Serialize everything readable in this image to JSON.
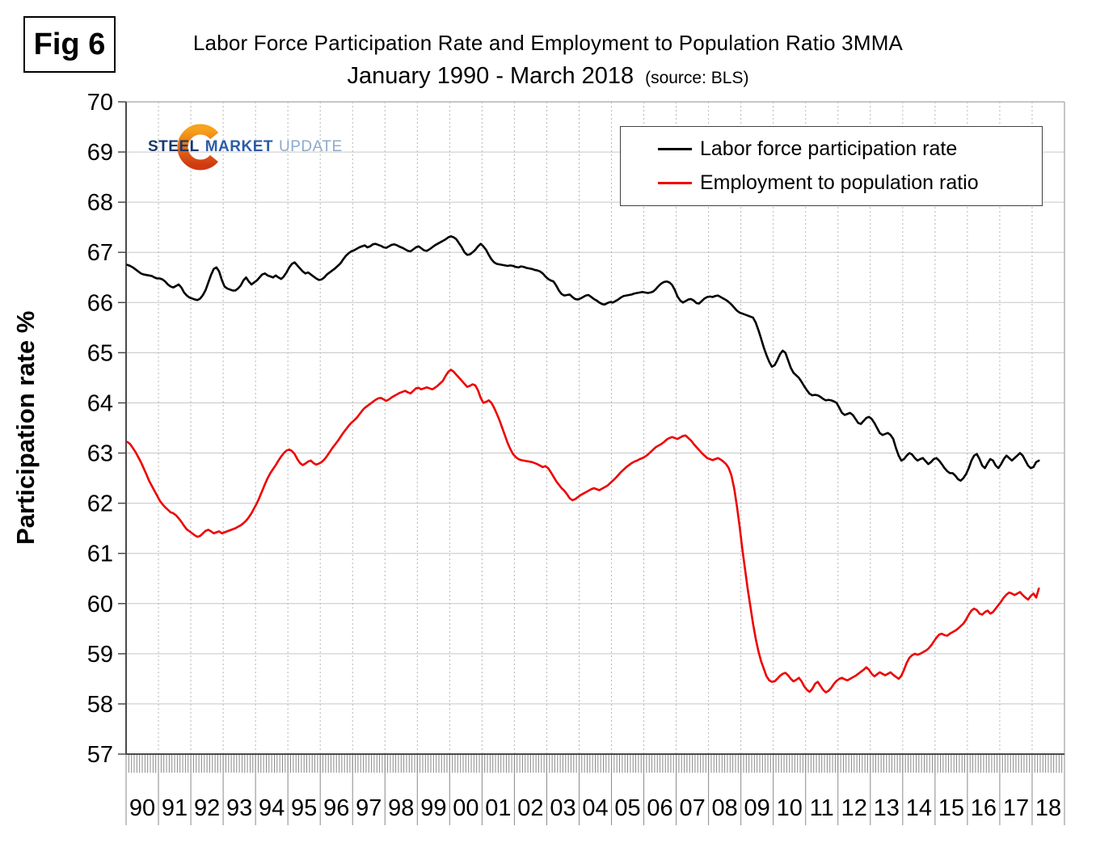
{
  "figure": {
    "label": "Fig 6"
  },
  "header": {
    "title": "Labor Force Participation Rate and Employment to Population Ratio 3MMA",
    "subtitle": "January 1990 - March 2018",
    "source": "(source: BLS)"
  },
  "logo": {
    "steel": "STEEL",
    "market": "MARKET",
    "update": "UPDATE",
    "steel_color": "#17386e",
    "market_color": "#2a5ca8",
    "update_color": "#8ea9c9",
    "crescent_color_top": "#f7a21b",
    "crescent_color_bottom": "#d03a12"
  },
  "y_axis": {
    "title": "Participation rate %"
  },
  "legend": {
    "items": [
      {
        "label": "Labor force participation rate",
        "color": "#000000"
      },
      {
        "label": "Employment to population ratio",
        "color": "#ee0000"
      }
    ]
  },
  "chart_data": {
    "type": "line",
    "title": "Labor Force Participation Rate and Employment to Population Ratio 3MMA",
    "subtitle": "January 1990 - March 2018 (source: BLS)",
    "ylabel": "Participation rate %",
    "ylim": [
      57,
      70
    ],
    "ytick_step": 1,
    "frequency": "monthly",
    "x_start_year": 1990,
    "x_axis_end_year": 2019,
    "data_end": "March 2018",
    "grid": {
      "horizontal": "solid",
      "vertical": "dotted-yearly"
    },
    "legend_position": "top-right",
    "x_tick_labels": [
      "90",
      "91",
      "92",
      "93",
      "94",
      "95",
      "96",
      "97",
      "98",
      "99",
      "00",
      "01",
      "02",
      "03",
      "04",
      "05",
      "06",
      "07",
      "08",
      "09",
      "10",
      "11",
      "12",
      "13",
      "14",
      "15",
      "16",
      "17",
      "18"
    ],
    "series": [
      {
        "name": "Labor force participation rate",
        "color": "#000000",
        "values": [
          66.75,
          66.73,
          66.7,
          66.66,
          66.62,
          66.58,
          66.56,
          66.55,
          66.54,
          66.53,
          66.5,
          66.48,
          66.48,
          66.46,
          66.42,
          66.36,
          66.32,
          66.3,
          66.33,
          66.36,
          66.3,
          66.2,
          66.14,
          66.1,
          66.08,
          66.06,
          66.05,
          66.08,
          66.15,
          66.25,
          66.4,
          66.55,
          66.67,
          66.7,
          66.62,
          66.45,
          66.32,
          66.28,
          66.26,
          66.24,
          66.24,
          66.28,
          66.34,
          66.44,
          66.5,
          66.42,
          66.36,
          66.4,
          66.44,
          66.5,
          66.56,
          66.58,
          66.54,
          66.52,
          66.5,
          66.54,
          66.5,
          66.47,
          66.52,
          66.6,
          66.7,
          66.77,
          66.8,
          66.74,
          66.68,
          66.62,
          66.58,
          66.6,
          66.56,
          66.52,
          66.48,
          66.45,
          66.46,
          66.5,
          66.56,
          66.6,
          66.64,
          66.68,
          66.73,
          66.78,
          66.86,
          66.93,
          66.98,
          67.02,
          67.04,
          67.07,
          67.1,
          67.12,
          67.14,
          67.1,
          67.12,
          67.16,
          67.17,
          67.15,
          67.13,
          67.1,
          67.09,
          67.12,
          67.15,
          67.16,
          67.14,
          67.11,
          67.09,
          67.06,
          67.03,
          67.02,
          67.06,
          67.1,
          67.12,
          67.08,
          67.04,
          67.03,
          67.06,
          67.1,
          67.14,
          67.17,
          67.2,
          67.23,
          67.26,
          67.3,
          67.32,
          67.3,
          67.26,
          67.18,
          67.1,
          67.0,
          66.95,
          66.96,
          67.0,
          67.05,
          67.12,
          67.17,
          67.12,
          67.05,
          66.95,
          66.86,
          66.8,
          66.77,
          66.76,
          66.75,
          66.74,
          66.73,
          66.74,
          66.73,
          66.71,
          66.7,
          66.72,
          66.71,
          66.69,
          66.68,
          66.67,
          66.65,
          66.64,
          66.62,
          66.58,
          66.52,
          66.47,
          66.44,
          66.42,
          66.34,
          66.24,
          66.17,
          66.14,
          66.15,
          66.16,
          66.11,
          66.07,
          66.06,
          66.08,
          66.11,
          66.14,
          66.15,
          66.11,
          66.07,
          66.04,
          66.0,
          65.97,
          65.96,
          65.99,
          66.01,
          66.0,
          66.03,
          66.06,
          66.1,
          66.13,
          66.14,
          66.15,
          66.16,
          66.18,
          66.19,
          66.2,
          66.21,
          66.2,
          66.19,
          66.2,
          66.22,
          66.27,
          66.33,
          66.38,
          66.41,
          66.42,
          66.4,
          66.35,
          66.25,
          66.12,
          66.04,
          66.0,
          66.03,
          66.06,
          66.07,
          66.04,
          65.99,
          65.98,
          66.03,
          66.08,
          66.11,
          66.12,
          66.11,
          66.13,
          66.14,
          66.11,
          66.08,
          66.05,
          66.01,
          65.96,
          65.9,
          65.84,
          65.8,
          65.78,
          65.76,
          65.74,
          65.72,
          65.7,
          65.6,
          65.45,
          65.28,
          65.1,
          64.95,
          64.82,
          64.72,
          64.75,
          64.85,
          64.97,
          65.04,
          65.0,
          64.85,
          64.7,
          64.6,
          64.55,
          64.5,
          64.42,
          64.33,
          64.25,
          64.18,
          64.15,
          64.16,
          64.15,
          64.12,
          64.08,
          64.05,
          64.06,
          64.05,
          64.03,
          64.0,
          63.9,
          63.8,
          63.76,
          63.78,
          63.8,
          63.76,
          63.68,
          63.6,
          63.58,
          63.64,
          63.7,
          63.72,
          63.68,
          63.6,
          63.5,
          63.4,
          63.36,
          63.38,
          63.4,
          63.36,
          63.28,
          63.1,
          62.95,
          62.85,
          62.88,
          62.95,
          63.0,
          62.97,
          62.9,
          62.85,
          62.88,
          62.9,
          62.84,
          62.78,
          62.82,
          62.88,
          62.9,
          62.85,
          62.78,
          62.7,
          62.64,
          62.6,
          62.6,
          62.55,
          62.48,
          62.45,
          62.5,
          62.58,
          62.7,
          62.85,
          62.95,
          62.98,
          62.88,
          62.75,
          62.7,
          62.8,
          62.88,
          62.85,
          62.75,
          62.7,
          62.78,
          62.88,
          62.95,
          62.9,
          62.85,
          62.9,
          62.95,
          63.0,
          62.95,
          62.85,
          62.75,
          62.7,
          62.72,
          62.82,
          62.85
        ]
      },
      {
        "name": "Employment to population ratio",
        "color": "#ee0000",
        "values": [
          63.22,
          63.18,
          63.1,
          63.02,
          62.92,
          62.82,
          62.7,
          62.58,
          62.45,
          62.35,
          62.25,
          62.15,
          62.05,
          61.98,
          61.92,
          61.87,
          61.82,
          61.8,
          61.76,
          61.7,
          61.63,
          61.55,
          61.48,
          61.44,
          61.4,
          61.36,
          61.33,
          61.35,
          61.4,
          61.45,
          61.47,
          61.44,
          61.4,
          61.42,
          61.44,
          61.4,
          61.42,
          61.44,
          61.46,
          61.48,
          61.5,
          61.53,
          61.56,
          61.6,
          61.65,
          61.72,
          61.8,
          61.9,
          62.0,
          62.12,
          62.25,
          62.38,
          62.5,
          62.6,
          62.68,
          62.76,
          62.85,
          62.93,
          63.0,
          63.05,
          63.07,
          63.04,
          62.98,
          62.88,
          62.8,
          62.76,
          62.79,
          62.83,
          62.85,
          62.8,
          62.77,
          62.79,
          62.82,
          62.87,
          62.94,
          63.02,
          63.1,
          63.17,
          63.24,
          63.32,
          63.4,
          63.47,
          63.54,
          63.6,
          63.65,
          63.7,
          63.77,
          63.84,
          63.9,
          63.94,
          63.98,
          64.02,
          64.06,
          64.09,
          64.1,
          64.07,
          64.04,
          64.07,
          64.11,
          64.14,
          64.17,
          64.2,
          64.22,
          64.24,
          64.21,
          64.19,
          64.24,
          64.29,
          64.3,
          64.27,
          64.29,
          64.31,
          64.29,
          64.27,
          64.3,
          64.34,
          64.39,
          64.44,
          64.54,
          64.62,
          64.66,
          64.62,
          64.56,
          64.5,
          64.44,
          64.38,
          64.32,
          64.34,
          64.37,
          64.35,
          64.25,
          64.1,
          64.0,
          64.02,
          64.05,
          64.0,
          63.9,
          63.78,
          63.65,
          63.5,
          63.35,
          63.2,
          63.08,
          62.98,
          62.92,
          62.88,
          62.86,
          62.85,
          62.84,
          62.83,
          62.82,
          62.8,
          62.78,
          62.75,
          62.72,
          62.74,
          62.7,
          62.62,
          62.53,
          62.44,
          62.37,
          62.3,
          62.25,
          62.18,
          62.1,
          62.06,
          62.08,
          62.12,
          62.16,
          62.19,
          62.22,
          62.25,
          62.28,
          62.3,
          62.28,
          62.26,
          62.29,
          62.32,
          62.35,
          62.4,
          62.45,
          62.5,
          62.56,
          62.62,
          62.67,
          62.72,
          62.76,
          62.8,
          62.83,
          62.85,
          62.88,
          62.9,
          62.93,
          62.97,
          63.02,
          63.07,
          63.12,
          63.15,
          63.18,
          63.22,
          63.27,
          63.3,
          63.32,
          63.3,
          63.28,
          63.31,
          63.34,
          63.35,
          63.3,
          63.25,
          63.18,
          63.12,
          63.06,
          63.0,
          62.95,
          62.9,
          62.88,
          62.86,
          62.88,
          62.9,
          62.87,
          62.83,
          62.78,
          62.7,
          62.55,
          62.3,
          61.95,
          61.55,
          61.1,
          60.7,
          60.3,
          59.95,
          59.6,
          59.3,
          59.05,
          58.85,
          58.7,
          58.55,
          58.47,
          58.44,
          58.45,
          58.5,
          58.56,
          58.6,
          58.62,
          58.57,
          58.5,
          58.45,
          58.48,
          58.52,
          58.45,
          58.35,
          58.28,
          58.24,
          58.3,
          58.4,
          58.44,
          58.36,
          58.28,
          58.23,
          58.26,
          58.32,
          58.4,
          58.46,
          58.5,
          58.52,
          58.49,
          58.47,
          58.5,
          58.53,
          58.56,
          58.6,
          58.64,
          58.68,
          58.73,
          58.68,
          58.6,
          58.55,
          58.59,
          58.63,
          58.6,
          58.57,
          58.6,
          58.63,
          58.58,
          58.54,
          58.5,
          58.56,
          58.68,
          58.82,
          58.92,
          58.97,
          59.0,
          58.98,
          59.0,
          59.03,
          59.06,
          59.1,
          59.16,
          59.24,
          59.32,
          59.38,
          59.4,
          59.37,
          59.36,
          59.4,
          59.43,
          59.46,
          59.5,
          59.55,
          59.6,
          59.68,
          59.78,
          59.86,
          59.9,
          59.87,
          59.8,
          59.78,
          59.83,
          59.86,
          59.8,
          59.83,
          59.9,
          59.97,
          60.04,
          60.12,
          60.18,
          60.22,
          60.2,
          60.17,
          60.2,
          60.23,
          60.17,
          60.12,
          60.08,
          60.15,
          60.2,
          60.12,
          60.3
        ]
      }
    ]
  }
}
